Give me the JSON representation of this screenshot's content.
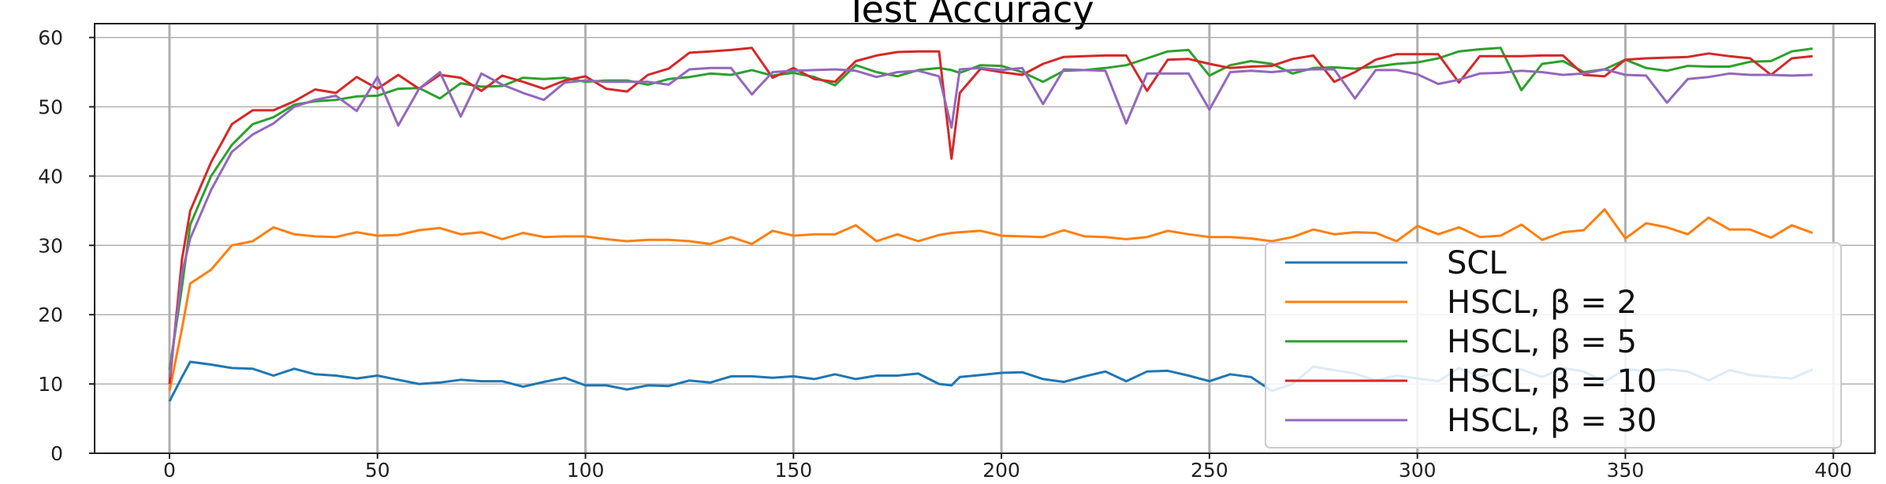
{
  "chart_data": {
    "type": "line",
    "title": "Test Accuracy",
    "xlabel": "",
    "ylabel": "",
    "xlim": [
      -18,
      410
    ],
    "ylim": [
      0,
      62
    ],
    "xticks": [
      0,
      50,
      100,
      150,
      200,
      250,
      300,
      350,
      400
    ],
    "yticks": [
      0,
      10,
      20,
      30,
      40,
      50,
      60
    ],
    "grid": true,
    "legend_position": "lower right",
    "x": [
      0,
      3,
      5,
      10,
      15,
      20,
      25,
      30,
      35,
      40,
      45,
      50,
      55,
      60,
      65,
      70,
      75,
      80,
      85,
      90,
      95,
      100,
      105,
      110,
      115,
      120,
      125,
      130,
      135,
      140,
      145,
      150,
      155,
      160,
      165,
      170,
      175,
      180,
      185,
      188,
      190,
      195,
      200,
      205,
      210,
      215,
      220,
      225,
      230,
      235,
      240,
      245,
      250,
      255,
      260,
      265,
      270,
      275,
      280,
      285,
      290,
      295,
      300,
      305,
      310,
      315,
      320,
      325,
      330,
      335,
      340,
      345,
      350,
      355,
      360,
      365,
      370,
      375,
      380,
      385,
      390,
      395
    ],
    "series": [
      {
        "name": "SCL",
        "color": "#1f77b4",
        "values": [
          7.5,
          11,
          13.2,
          12.8,
          12.3,
          12.2,
          11.2,
          12.2,
          11.4,
          11.2,
          10.8,
          11.2,
          10.6,
          10,
          10.2,
          10.6,
          10.4,
          10.4,
          9.6,
          10.3,
          10.9,
          9.8,
          9.8,
          9.2,
          9.8,
          9.7,
          10.5,
          10.2,
          11.1,
          11.1,
          10.9,
          11.1,
          10.7,
          11.4,
          10.7,
          11.2,
          11.2,
          11.5,
          10,
          9.8,
          11,
          11.3,
          11.6,
          11.7,
          10.7,
          10.3,
          11.1,
          11.8,
          10.4,
          11.8,
          11.9,
          11.2,
          10.4,
          11.4,
          11,
          9,
          10,
          12.5,
          12,
          11.5,
          10.5,
          11.2,
          10.8,
          10.4,
          12.3,
          11,
          11.8,
          12.1,
          11,
          12.3,
          11.8,
          10.3,
          12.2,
          11.8,
          12.1,
          11.8,
          10.5,
          12,
          11.3,
          11,
          10.8,
          12.1
        ]
      },
      {
        "name": "HSCL, β = 2",
        "color": "#ff7f0e",
        "values": [
          9,
          18,
          24.5,
          26.5,
          30,
          30.6,
          32.6,
          31.6,
          31.3,
          31.2,
          31.9,
          31.4,
          31.5,
          32.2,
          32.5,
          31.6,
          31.9,
          30.9,
          31.8,
          31.2,
          31.3,
          31.3,
          30.9,
          30.6,
          30.8,
          30.8,
          30.6,
          30.2,
          31.2,
          30.2,
          32.1,
          31.4,
          31.6,
          31.6,
          32.9,
          30.6,
          31.6,
          30.6,
          31.5,
          31.8,
          31.9,
          32.1,
          31.4,
          31.3,
          31.2,
          32.2,
          31.3,
          31.2,
          30.9,
          31.2,
          32.1,
          31.6,
          31.2,
          31.2,
          31,
          30.6,
          31.2,
          32.3,
          31.6,
          31.9,
          31.8,
          30.6,
          32.8,
          31.6,
          32.6,
          31.2,
          31.4,
          33,
          30.8,
          31.9,
          32.2,
          35.2,
          31,
          33.2,
          32.6,
          31.6,
          34,
          32.3,
          32.3,
          31.1,
          32.9,
          31.8
        ]
      },
      {
        "name": "HSCL, β = 5",
        "color": "#2ca02c",
        "values": [
          12,
          24,
          33,
          40,
          44.5,
          47.5,
          48.5,
          50.3,
          50.8,
          51,
          51.5,
          51.6,
          52.6,
          52.7,
          51.2,
          53.4,
          52.9,
          53,
          54.2,
          54,
          54.2,
          53.6,
          53.8,
          53.8,
          53.2,
          54,
          54.3,
          54.8,
          54.6,
          55.3,
          54.5,
          54.9,
          54.3,
          53.1,
          56,
          55,
          54.4,
          55.3,
          55.6,
          55.3,
          54.9,
          56,
          55.9,
          55,
          53.6,
          55.2,
          55.3,
          55.6,
          56,
          57,
          58,
          58.2,
          54.5,
          56,
          56.6,
          56.2,
          54.8,
          55.6,
          55.7,
          55.5,
          55.8,
          56.2,
          56.4,
          57,
          58,
          58.3,
          58.5,
          52.4,
          56.2,
          56.6,
          55,
          55.4,
          56.8,
          55.6,
          55.2,
          55.9,
          55.8,
          55.8,
          56.5,
          56.6,
          58,
          58.4
        ]
      },
      {
        "name": "HSCL, β = 10",
        "color": "#d62728",
        "values": [
          10,
          28,
          35,
          42,
          47.5,
          49.5,
          49.5,
          50.8,
          52.5,
          52,
          54.3,
          52.6,
          54.6,
          52.6,
          54.6,
          54.2,
          52.3,
          54.5,
          53.6,
          52.6,
          53.8,
          54.4,
          52.6,
          52.2,
          54.6,
          55.5,
          57.8,
          58,
          58.2,
          58.5,
          54.2,
          55.6,
          54,
          53.6,
          56.6,
          57.4,
          57.9,
          58,
          58,
          42.5,
          52,
          55.5,
          55,
          54.6,
          56.2,
          57.2,
          57.3,
          57.4,
          57.4,
          52.3,
          56.8,
          56.9,
          56.2,
          55.6,
          55.8,
          55.9,
          56.9,
          57.4,
          53.6,
          55,
          56.8,
          57.6,
          57.6,
          57.6,
          53.5,
          57.3,
          57.3,
          57.3,
          57.4,
          57.4,
          54.6,
          54.4,
          56.8,
          57,
          57.1,
          57.2,
          57.7,
          57.3,
          57,
          54.6,
          57,
          57.3
        ]
      },
      {
        "name": "HSCL, β = 30",
        "color": "#9467bd",
        "values": [
          11,
          26,
          31,
          38,
          43.5,
          46,
          47.6,
          50,
          51,
          51.6,
          49.4,
          54.3,
          47.3,
          52.6,
          55,
          48.6,
          54.8,
          53.2,
          52,
          51,
          53.5,
          53.8,
          53.6,
          53.6,
          53.6,
          53.2,
          55.4,
          55.6,
          55.6,
          51.8,
          55,
          55.2,
          55.3,
          55.4,
          55.2,
          54.3,
          55,
          55.2,
          54.4,
          47,
          55.4,
          55.6,
          55.3,
          55.6,
          50.4,
          55.4,
          55.3,
          55.2,
          47.6,
          54.8,
          54.8,
          54.8,
          49.6,
          55,
          55.2,
          55,
          55.3,
          55.4,
          55.4,
          51.2,
          55.3,
          55.3,
          54.7,
          53.3,
          53.9,
          54.8,
          54.9,
          55.2,
          55,
          54.6,
          54.8,
          55.4,
          54.6,
          54.5,
          50.6,
          54,
          54.3,
          54.8,
          54.6,
          54.6,
          54.5,
          54.6
        ]
      }
    ]
  }
}
